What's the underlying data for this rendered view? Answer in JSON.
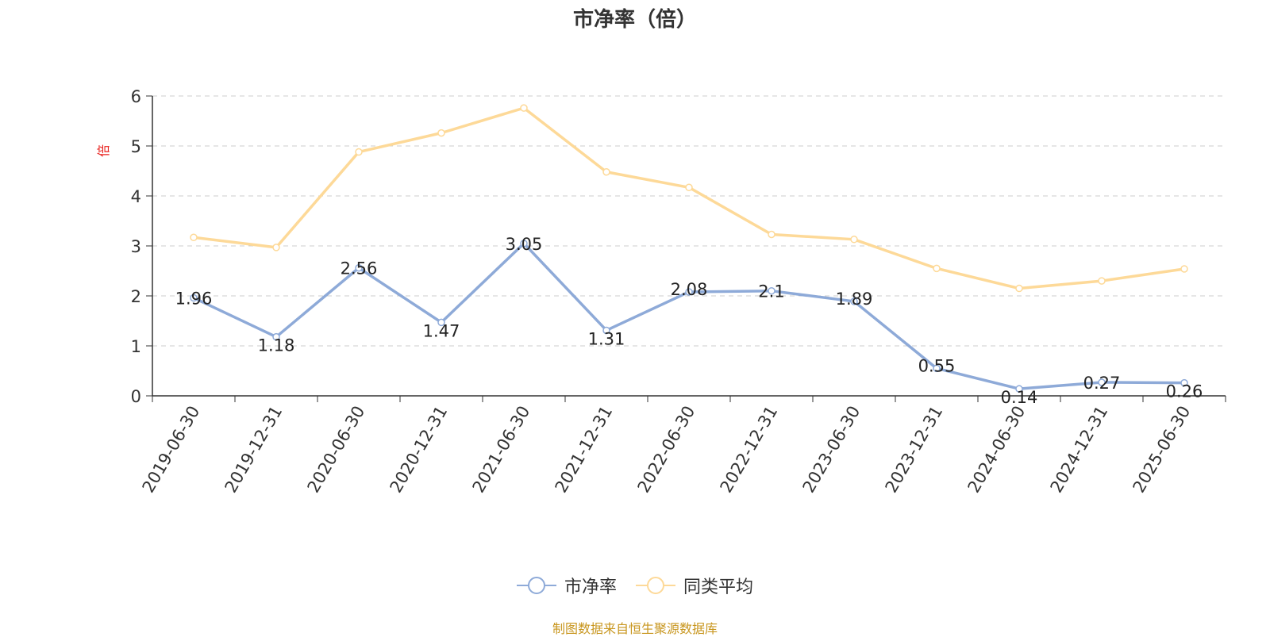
{
  "title": "市净率（倍）",
  "source_note": "制图数据来自恒生聚源数据库",
  "chart_data": {
    "type": "line",
    "title": "市净率（倍）",
    "ylabel": "倍",
    "ylim": [
      0,
      6
    ],
    "yticks": [
      0,
      1,
      2,
      3,
      4,
      5,
      6
    ],
    "grid": true,
    "legend_position": "bottom-center",
    "categories": [
      "2019-06-30",
      "2019-12-31",
      "2020-06-30",
      "2020-12-31",
      "2021-06-30",
      "2021-12-31",
      "2022-06-30",
      "2022-12-31",
      "2023-06-30",
      "2023-12-31",
      "2024-06-30",
      "2024-12-31",
      "2025-06-30"
    ],
    "series": [
      {
        "name": "市净率",
        "color": "#8eaad8",
        "values": [
          1.96,
          1.18,
          2.56,
          1.47,
          3.05,
          1.31,
          2.08,
          2.1,
          1.89,
          0.55,
          0.14,
          0.27,
          0.26
        ],
        "data_labels": [
          "1.96",
          "1.18",
          "2.56",
          "1.47",
          "3.05",
          "1.31",
          "2.08",
          "2.1",
          "1.89",
          "0.55",
          "0.14",
          "0.27",
          "0.26"
        ]
      },
      {
        "name": "同类平均",
        "color": "#fdd998",
        "values": [
          3.17,
          2.97,
          4.88,
          5.26,
          5.76,
          4.48,
          4.17,
          3.23,
          3.13,
          2.55,
          2.15,
          2.3,
          2.54
        ]
      }
    ]
  }
}
